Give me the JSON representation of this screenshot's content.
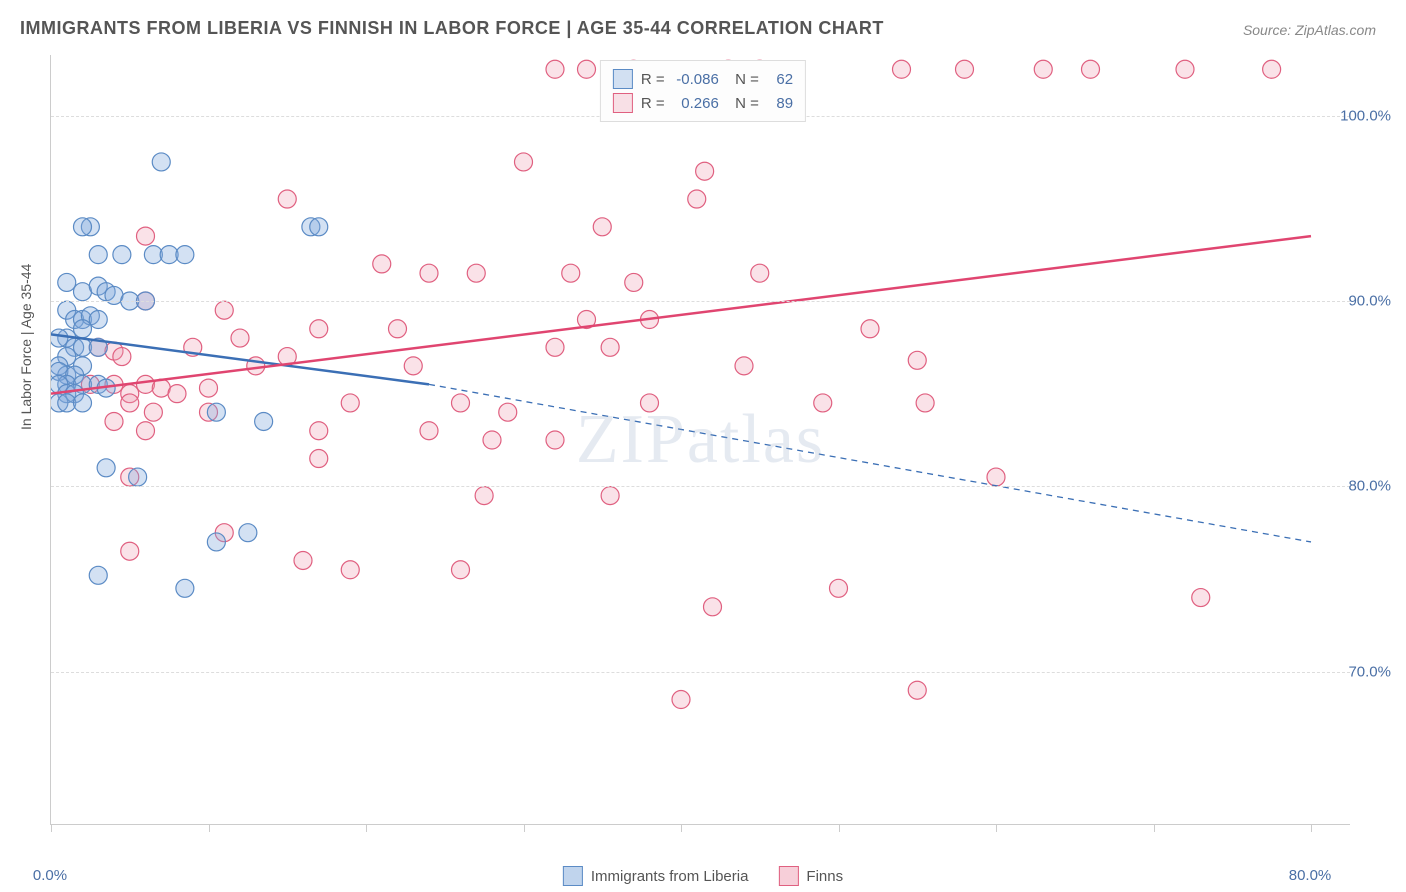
{
  "title": "IMMIGRANTS FROM LIBERIA VS FINNISH IN LABOR FORCE | AGE 35-44 CORRELATION CHART",
  "source": "Source: ZipAtlas.com",
  "watermark": "ZIPatlas",
  "ylabel": "In Labor Force | Age 35-44",
  "chart": {
    "type": "scatter",
    "xlim": [
      0,
      80
    ],
    "ylim": [
      62,
      103
    ],
    "xticks": [
      0,
      10,
      20,
      30,
      40,
      50,
      60,
      70,
      80
    ],
    "xtick_labels": {
      "0": "0.0%",
      "80": "80.0%"
    },
    "yticks": [
      70,
      80,
      90,
      100
    ],
    "ytick_labels": {
      "70": "70.0%",
      "80": "80.0%",
      "90": "90.0%",
      "100": "100.0%"
    },
    "grid_color": "#dddddd",
    "background_color": "#ffffff",
    "marker_radius": 9,
    "marker_stroke_width": 1.2,
    "line_width": 2.5,
    "series": [
      {
        "name": "Immigrants from Liberia",
        "color_fill": "rgba(130,170,220,0.35)",
        "color_stroke": "#5b8bc5",
        "line_color": "#3b6fb5",
        "R": "-0.086",
        "N": "62",
        "regression": {
          "x1": 0,
          "y1": 88.2,
          "x2_solid": 24,
          "y2_solid": 85.5,
          "x2": 80,
          "y2": 77.0
        },
        "points": [
          [
            7.0,
            97.5
          ],
          [
            2.5,
            94.0
          ],
          [
            2.0,
            94.0
          ],
          [
            16.5,
            94.0
          ],
          [
            17.0,
            94.0
          ],
          [
            3.0,
            92.5
          ],
          [
            4.5,
            92.5
          ],
          [
            6.5,
            92.5
          ],
          [
            7.5,
            92.5
          ],
          [
            8.5,
            92.5
          ],
          [
            1.0,
            91.0
          ],
          [
            2.0,
            90.5
          ],
          [
            3.0,
            90.8
          ],
          [
            3.5,
            90.5
          ],
          [
            4.0,
            90.3
          ],
          [
            5.0,
            90.0
          ],
          [
            6.0,
            90.0
          ],
          [
            1.0,
            89.5
          ],
          [
            1.5,
            89.0
          ],
          [
            2.0,
            89.0
          ],
          [
            2.5,
            89.2
          ],
          [
            3.0,
            89.0
          ],
          [
            2.0,
            88.5
          ],
          [
            1.0,
            88.0
          ],
          [
            0.5,
            88.0
          ],
          [
            1.5,
            87.5
          ],
          [
            2.0,
            87.5
          ],
          [
            3.0,
            87.5
          ],
          [
            1.0,
            87.0
          ],
          [
            0.5,
            86.5
          ],
          [
            2.0,
            86.5
          ],
          [
            1.0,
            86.0
          ],
          [
            0.5,
            86.2
          ],
          [
            1.5,
            86.0
          ],
          [
            1.0,
            85.5
          ],
          [
            0.5,
            85.5
          ],
          [
            2.0,
            85.5
          ],
          [
            3.0,
            85.5
          ],
          [
            3.5,
            85.3
          ],
          [
            1.0,
            85.0
          ],
          [
            1.5,
            85.0
          ],
          [
            0.5,
            84.5
          ],
          [
            1.0,
            84.5
          ],
          [
            2.0,
            84.5
          ],
          [
            10.5,
            84.0
          ],
          [
            13.5,
            83.5
          ],
          [
            3.5,
            81.0
          ],
          [
            5.5,
            80.5
          ],
          [
            12.5,
            77.5
          ],
          [
            10.5,
            77.0
          ],
          [
            3.0,
            75.2
          ],
          [
            8.5,
            74.5
          ]
        ]
      },
      {
        "name": "Finns",
        "color_fill": "rgba(240,160,180,0.3)",
        "color_stroke": "#e06080",
        "line_color": "#e04570",
        "R": "0.266",
        "N": "89",
        "regression": {
          "x1": 0,
          "y1": 85.0,
          "x2_solid": 80,
          "y2_solid": 93.5,
          "x2": 80,
          "y2": 93.5
        },
        "points": [
          [
            32.0,
            102.5
          ],
          [
            34.0,
            102.5
          ],
          [
            37.0,
            102.5
          ],
          [
            43.0,
            102.5
          ],
          [
            45.0,
            102.5
          ],
          [
            54.0,
            102.5
          ],
          [
            58.0,
            102.5
          ],
          [
            63.0,
            102.5
          ],
          [
            66.0,
            102.5
          ],
          [
            72.0,
            102.5
          ],
          [
            77.5,
            102.5
          ],
          [
            30.0,
            97.5
          ],
          [
            41.5,
            97.0
          ],
          [
            15.0,
            95.5
          ],
          [
            41.0,
            95.5
          ],
          [
            6.0,
            93.5
          ],
          [
            35.0,
            94.0
          ],
          [
            21.0,
            92.0
          ],
          [
            24.0,
            91.5
          ],
          [
            27.0,
            91.5
          ],
          [
            33.0,
            91.5
          ],
          [
            37.0,
            91.0
          ],
          [
            45.0,
            91.5
          ],
          [
            6.0,
            90.0
          ],
          [
            11.0,
            89.5
          ],
          [
            17.0,
            88.5
          ],
          [
            12.0,
            88.0
          ],
          [
            22.0,
            88.5
          ],
          [
            34.0,
            89.0
          ],
          [
            38.0,
            89.0
          ],
          [
            52.0,
            88.5
          ],
          [
            3.0,
            87.5
          ],
          [
            4.0,
            87.3
          ],
          [
            4.5,
            87.0
          ],
          [
            9.0,
            87.5
          ],
          [
            13.0,
            86.5
          ],
          [
            15.0,
            87.0
          ],
          [
            23.0,
            86.5
          ],
          [
            32.0,
            87.5
          ],
          [
            35.5,
            87.5
          ],
          [
            44.0,
            86.5
          ],
          [
            55.0,
            86.8
          ],
          [
            2.5,
            85.5
          ],
          [
            4.0,
            85.5
          ],
          [
            5.0,
            85.0
          ],
          [
            6.0,
            85.5
          ],
          [
            7.0,
            85.3
          ],
          [
            8.0,
            85.0
          ],
          [
            10.0,
            85.3
          ],
          [
            5.0,
            84.5
          ],
          [
            6.5,
            84.0
          ],
          [
            10.0,
            84.0
          ],
          [
            19.0,
            84.5
          ],
          [
            26.0,
            84.5
          ],
          [
            29.0,
            84.0
          ],
          [
            38.0,
            84.5
          ],
          [
            49.0,
            84.5
          ],
          [
            55.5,
            84.5
          ],
          [
            4.0,
            83.5
          ],
          [
            6.0,
            83.0
          ],
          [
            17.0,
            83.0
          ],
          [
            24.0,
            83.0
          ],
          [
            28.0,
            82.5
          ],
          [
            32.0,
            82.5
          ],
          [
            17.0,
            81.5
          ],
          [
            5.0,
            80.5
          ],
          [
            60.0,
            80.5
          ],
          [
            27.5,
            79.5
          ],
          [
            35.5,
            79.5
          ],
          [
            11.0,
            77.5
          ],
          [
            5.0,
            76.5
          ],
          [
            16.0,
            76.0
          ],
          [
            19.0,
            75.5
          ],
          [
            26.0,
            75.5
          ],
          [
            50.0,
            74.5
          ],
          [
            73.0,
            74.0
          ],
          [
            42.0,
            73.5
          ],
          [
            40.0,
            68.5
          ],
          [
            55.0,
            69.0
          ]
        ]
      }
    ]
  },
  "legend_bottom": [
    {
      "label": "Immigrants from Liberia",
      "fill": "rgba(130,170,220,0.5)",
      "stroke": "#5b8bc5"
    },
    {
      "label": "Finns",
      "fill": "rgba(240,160,180,0.5)",
      "stroke": "#e06080"
    }
  ]
}
